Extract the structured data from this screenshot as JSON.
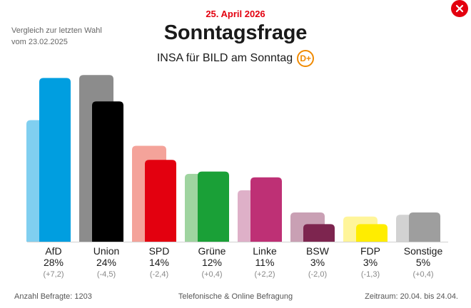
{
  "header": {
    "date": "25. April 2026",
    "title": "Sonntagsfrage",
    "subtitle": "INSA für BILD am Sonntag",
    "badge": "D+",
    "compare_line1": "Vergleich zur letzten Wahl",
    "compare_line2": "vom 23.02.2025"
  },
  "footer": {
    "sample": "Anzahl Befragte: 1203",
    "method": "Telefonische & Online Befragung",
    "period": "Zeitraum: 20.04. bis 24.04."
  },
  "chart_data": {
    "type": "bar",
    "categories": [
      "AfD",
      "Union",
      "SPD",
      "Grüne",
      "Linke",
      "BSW",
      "FDP",
      "Sonstige"
    ],
    "series": [
      {
        "name": "",
        "values": [
          20.8,
          28.5,
          16.4,
          11.6,
          8.8,
          5.0,
          4.3,
          4.6
        ]
      },
      {
        "name": "",
        "values": [
          28,
          24,
          14,
          12,
          11,
          3,
          3,
          5
        ]
      }
    ],
    "value_labels": [
      "28%",
      "24%",
      "14%",
      "12%",
      "11%",
      "3%",
      "3%",
      "5%"
    ],
    "change_labels": [
      "(+7,2)",
      "(-4,5)",
      "(-2,4)",
      "(+0,4)",
      "(+2,2)",
      "(-2,0)",
      "(-1,3)",
      "(+0,4)"
    ],
    "colors": [
      "#009ee0",
      "#000000",
      "#e3000f",
      "#1aa037",
      "#be3075",
      "#7d254f",
      "#ffed00",
      "#9e9e9e"
    ],
    "previous_colors": [
      "#80cff0",
      "#8c8c8c",
      "#f4a39a",
      "#9fd4a0",
      "#deb0c8",
      "#c9a0b4",
      "#fff59a",
      "#d2d2d2"
    ],
    "ylim": [
      0,
      30
    ]
  }
}
